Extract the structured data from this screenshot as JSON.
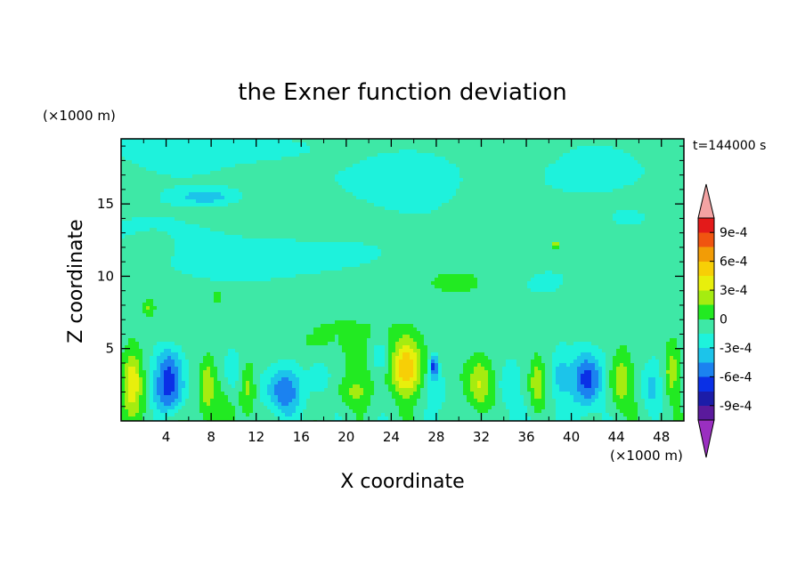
{
  "chart_data": {
    "type": "heatmap",
    "title": "the Exner function deviation",
    "xlabel": "X coordinate",
    "ylabel": "Z coordinate",
    "x_unit": "(×1000 m)",
    "y_unit": "(×1000 m)",
    "time_label": "t=144000 s",
    "xlim": [
      0,
      50
    ],
    "ylim": [
      0,
      19.5
    ],
    "x_ticks": [
      "4",
      "8",
      "12",
      "16",
      "20",
      "24",
      "28",
      "32",
      "36",
      "40",
      "44",
      "48"
    ],
    "y_ticks": [
      "5",
      "10",
      "15"
    ],
    "colorbar": {
      "labels": [
        "9e-4",
        "6e-4",
        "3e-4",
        "0",
        "-3e-4",
        "-6e-4",
        "-9e-4"
      ],
      "label_values": [
        0.0009,
        0.0006,
        0.0003,
        0,
        -0.0003,
        -0.0006,
        -0.0009
      ],
      "levels": [
        -0.00105,
        -0.0009,
        -0.00075,
        -0.0006,
        -0.00045,
        -0.0003,
        -0.00015,
        0,
        0.00015,
        0.0003,
        0.00045,
        0.0006,
        0.00075,
        0.0009,
        0.00105
      ],
      "colors": [
        "#9a2fc0",
        "#5a1a9c",
        "#1c1ca8",
        "#0a30e6",
        "#1b82f0",
        "#1cc4ea",
        "#1ef2dc",
        "#3ee8a6",
        "#22ea22",
        "#a5ec10",
        "#e8ef0c",
        "#f7cf06",
        "#f29c06",
        "#f05410",
        "#e31a1a",
        "#f4a3a3"
      ]
    },
    "blobs": [
      {
        "x": 1.0,
        "z": 2.8,
        "sx": 0.8,
        "sz": 2.0,
        "v": 0.0004
      },
      {
        "x": 4.3,
        "z": 2.0,
        "sx": 1.5,
        "sz": 1.7,
        "v": -0.00065
      },
      {
        "x": 4.3,
        "z": 4.0,
        "sx": 1.2,
        "sz": 1.3,
        "v": -0.00035
      },
      {
        "x": 7.6,
        "z": 2.6,
        "sx": 0.7,
        "sz": 1.8,
        "v": 0.00035
      },
      {
        "x": 9.8,
        "z": 3.6,
        "sx": 0.7,
        "sz": 1.5,
        "v": -0.00022
      },
      {
        "x": 11.3,
        "z": 2.3,
        "sx": 0.7,
        "sz": 1.8,
        "v": 0.00032
      },
      {
        "x": 14.3,
        "z": 2.0,
        "sx": 1.7,
        "sz": 1.7,
        "v": -0.00045
      },
      {
        "x": 17.6,
        "z": 3.2,
        "sx": 1.0,
        "sz": 1.3,
        "v": -0.00022
      },
      {
        "x": 20.5,
        "z": 2.0,
        "sx": 1.6,
        "sz": 1.1,
        "v": 0.00022
      },
      {
        "x": 23.0,
        "z": 4.5,
        "sx": 1.0,
        "sz": 1.1,
        "v": -0.0003
      },
      {
        "x": 25.3,
        "z": 3.7,
        "sx": 1.3,
        "sz": 1.9,
        "v": 0.00052
      },
      {
        "x": 27.8,
        "z": 3.8,
        "sx": 0.4,
        "sz": 0.8,
        "v": -0.0006
      },
      {
        "x": 28.3,
        "z": 2.3,
        "sx": 1.2,
        "sz": 1.5,
        "v": -0.0002
      },
      {
        "x": 31.8,
        "z": 2.5,
        "sx": 1.0,
        "sz": 2.0,
        "v": 0.0004
      },
      {
        "x": 34.2,
        "z": 2.5,
        "sx": 0.8,
        "sz": 1.5,
        "v": -0.0002
      },
      {
        "x": 36.9,
        "z": 2.7,
        "sx": 0.7,
        "sz": 1.8,
        "v": 0.00033
      },
      {
        "x": 39.0,
        "z": 3.0,
        "sx": 0.7,
        "sz": 1.6,
        "v": -0.00022
      },
      {
        "x": 41.4,
        "z": 2.8,
        "sx": 1.3,
        "sz": 1.9,
        "v": -0.00062
      },
      {
        "x": 44.3,
        "z": 2.8,
        "sx": 1.0,
        "sz": 1.9,
        "v": 0.00038
      },
      {
        "x": 47.0,
        "z": 2.3,
        "sx": 0.8,
        "sz": 1.5,
        "v": -0.00022
      },
      {
        "x": 48.9,
        "z": 3.4,
        "sx": 0.7,
        "sz": 1.8,
        "v": 0.00035
      },
      {
        "x": 8.5,
        "z": 8.5,
        "sx": 0.4,
        "sz": 0.4,
        "v": 0.00025
      },
      {
        "x": 2.5,
        "z": 7.8,
        "sx": 0.4,
        "sz": 0.5,
        "v": 0.00022
      },
      {
        "x": 38.6,
        "z": 12.2,
        "sx": 0.2,
        "sz": 0.2,
        "v": 0.00055
      },
      {
        "x": 38.0,
        "z": 9.5,
        "sx": 5.0,
        "sz": 2.0,
        "v": -0.00018
      },
      {
        "x": 18.0,
        "z": 11.5,
        "sx": 8.0,
        "sz": 1.5,
        "v": -0.0002
      },
      {
        "x": 7.5,
        "z": 15.5,
        "sx": 2.5,
        "sz": 0.5,
        "v": -0.0003
      },
      {
        "x": 40.0,
        "z": 16.5,
        "sx": 6.0,
        "sz": 1.8,
        "v": -0.00018
      },
      {
        "x": 27.0,
        "z": 17.0,
        "sx": 4.0,
        "sz": 1.5,
        "v": -0.00016
      },
      {
        "x": 10.0,
        "z": 19.0,
        "sx": 6.0,
        "sz": 0.8,
        "v": -0.00016
      },
      {
        "x": 45.0,
        "z": 14.0,
        "sx": 3.0,
        "sz": 1.0,
        "v": -0.00015
      },
      {
        "x": 3.0,
        "z": 12.0,
        "sx": 2.0,
        "sz": 1.0,
        "v": 0.0001
      },
      {
        "x": 30.0,
        "z": 9.5,
        "sx": 3.0,
        "sz": 1.0,
        "v": 0.0001
      }
    ]
  }
}
